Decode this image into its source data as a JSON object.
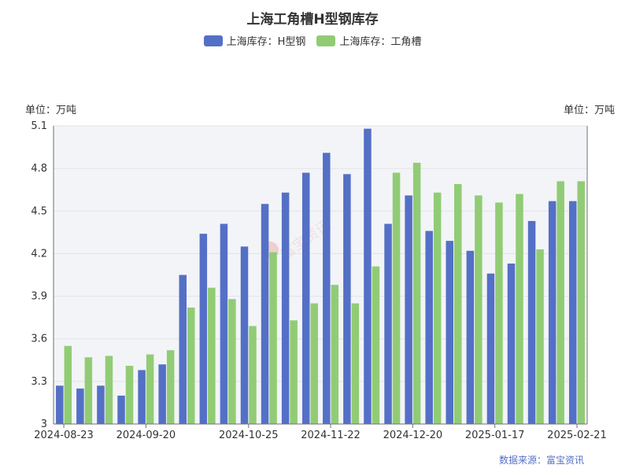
{
  "chart_data": {
    "type": "bar",
    "title": "上海工角槽H型钢库存",
    "y_unit_left": "单位：万吨",
    "y_unit_right": "单位：万吨",
    "ylim": [
      3,
      5.1
    ],
    "yticks": [
      "5.1",
      "4.8",
      "4.5",
      "4.2",
      "3.9",
      "3.6",
      "3.3",
      "3"
    ],
    "ytick_values": [
      5.1,
      4.8,
      4.5,
      4.2,
      3.9,
      3.6,
      3.3,
      3.0
    ],
    "x_tick_labels": [
      {
        "index": 0,
        "label": "2024-08-23"
      },
      {
        "index": 4,
        "label": "2024-09-20"
      },
      {
        "index": 9,
        "label": "2024-10-25"
      },
      {
        "index": 13,
        "label": "2024-11-22"
      },
      {
        "index": 17,
        "label": "2024-12-20"
      },
      {
        "index": 21,
        "label": "2025-01-17"
      },
      {
        "index": 25,
        "label": "2025-02-21"
      }
    ],
    "category_count": 26,
    "series": [
      {
        "name": "上海库存：H型钢",
        "color": "#5470c6",
        "values": [
          3.27,
          3.25,
          3.27,
          3.2,
          3.38,
          3.42,
          4.05,
          4.34,
          4.41,
          4.25,
          4.55,
          4.63,
          4.77,
          4.91,
          4.76,
          5.08,
          4.41,
          4.61,
          4.36,
          4.29,
          4.22,
          4.06,
          4.13,
          4.43,
          4.57,
          4.57
        ]
      },
      {
        "name": "上海库存：工角槽",
        "color": "#91cc75",
        "values": [
          3.55,
          3.47,
          3.48,
          3.41,
          3.49,
          3.52,
          3.82,
          3.96,
          3.88,
          3.69,
          4.21,
          3.73,
          3.85,
          3.98,
          3.85,
          4.11,
          4.77,
          4.84,
          4.63,
          4.69,
          4.61,
          4.56,
          4.62,
          4.23,
          4.71,
          4.71
        ]
      }
    ],
    "grid": true,
    "legend_position": "top-center"
  },
  "watermark": "富宝资讯",
  "source": "数据来源：富宝资讯"
}
